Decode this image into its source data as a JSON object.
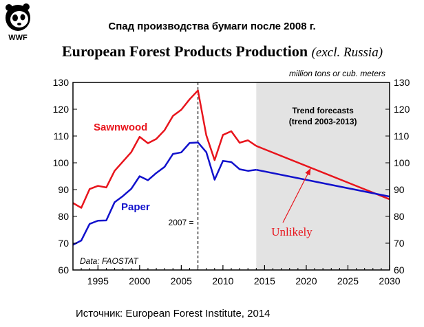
{
  "logo": {
    "text": "WWF"
  },
  "title_ru": "Спад производства бумаги после 2008 г.",
  "title_en": "European Forest Products Production",
  "title_en_sub": "(excl. Russia)",
  "source": "Источник: European Forest Institute, 2014",
  "chart_data": {
    "type": "line",
    "unit_label": "million tons or cub. meters",
    "xlim": [
      1992,
      2030
    ],
    "ylim": [
      60,
      130
    ],
    "x_ticks": [
      1995,
      2000,
      2005,
      2010,
      2015,
      2020,
      2025,
      2030
    ],
    "y_ticks": [
      60,
      70,
      80,
      90,
      100,
      110,
      120,
      130
    ],
    "grid": false,
    "legend": "inline labels",
    "series": [
      {
        "name": "Sawnwood",
        "color": "#e8141c",
        "x": [
          1992,
          1993,
          1994,
          1995,
          1996,
          1997,
          1998,
          1999,
          2000,
          2001,
          2002,
          2003,
          2004,
          2005,
          2006,
          2007,
          2008,
          2009,
          2010,
          2011,
          2012,
          2013,
          2014
        ],
        "y": [
          85,
          83.2,
          90.2,
          91.4,
          90.8,
          97,
          100.5,
          104,
          109.7,
          107.3,
          108.9,
          112.2,
          117.5,
          119.8,
          123.7,
          127,
          110.3,
          101,
          110.4,
          111.8,
          107.5,
          108.4,
          106.3
        ]
      },
      {
        "name": "Paper",
        "color": "#1111cc",
        "x": [
          1992,
          1993,
          1994,
          1995,
          1996,
          1997,
          1998,
          1999,
          2000,
          2001,
          2002,
          2003,
          2004,
          2005,
          2006,
          2007,
          2008,
          2009,
          2010,
          2011,
          2012,
          2013,
          2014
        ],
        "y": [
          69.4,
          71,
          77.2,
          78.4,
          78.5,
          85.3,
          87.6,
          90.3,
          95,
          93.5,
          96.2,
          98.5,
          103.3,
          103.9,
          107.4,
          107.6,
          104,
          93.7,
          100.7,
          100.3,
          97.6,
          97,
          97.4
        ]
      }
    ],
    "forecast": {
      "label_line1": "Trend forecasts",
      "label_line2": "(trend 2003-2013)",
      "x_start": 2014,
      "lines": [
        {
          "series": "Sawnwood",
          "x": [
            2014,
            2030
          ],
          "y": [
            106.3,
            86.4
          ]
        },
        {
          "series": "Paper",
          "x": [
            2014,
            2030
          ],
          "y": [
            97.4,
            87.4
          ]
        }
      ]
    },
    "vline": {
      "x": 2007,
      "label": "2007 ="
    },
    "annotations": {
      "data_note": "Data: FAOSTAT",
      "unlikely": "Unlikely",
      "unlikely_arrow_to": [
        2020.5,
        97.8
      ]
    }
  }
}
